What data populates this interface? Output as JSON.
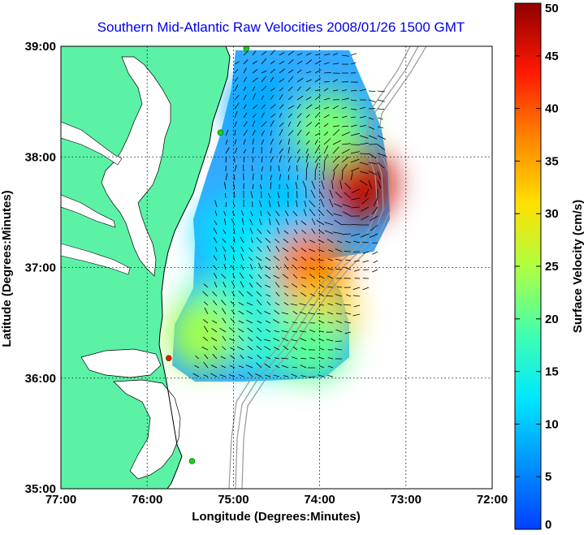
{
  "title": "Southern Mid-Atlantic Raw Velocities 2008/01/26 1500 GMT",
  "title_color": "#0000ee",
  "xlabel": "Longitude (Degrees:Minutes)",
  "ylabel": "Latitude (Degrees:Minutes)",
  "x_ticks": [
    "77:00",
    "76:00",
    "75:00",
    "74:00",
    "73:00",
    "72:00"
  ],
  "y_ticks": [
    "39:00",
    "38:00",
    "37:00",
    "36:00",
    "35:00"
  ],
  "colorbar": {
    "label": "Surface Velocity (cm/s)",
    "ticks": [
      "0",
      "5",
      "10",
      "15",
      "20",
      "25",
      "30",
      "35",
      "40",
      "45",
      "50"
    ],
    "min": 0,
    "max": 50,
    "colormap": "jet"
  },
  "colors": {
    "land": "#5cf2a6",
    "coastline": "#000000",
    "bathymetry": "#999999",
    "gridlines": "#000000",
    "station_green": "#22cc22",
    "station_red": "#ee1111"
  },
  "chart_data": {
    "type": "heatmap",
    "title": "Southern Mid-Atlantic Raw Velocities 2008/01/26 1500 GMT",
    "xlabel": "Longitude (Degrees:Minutes)",
    "ylabel": "Latitude (Degrees:Minutes)",
    "xlim": [
      -77,
      -72
    ],
    "ylim": [
      35,
      39
    ],
    "grid": true,
    "value_range": [
      0,
      50
    ],
    "stations": [
      {
        "lon": -74.85,
        "lat": 38.98,
        "color": "green"
      },
      {
        "lon": -75.15,
        "lat": 38.22,
        "color": "green"
      },
      {
        "lon": -75.75,
        "lat": 36.18,
        "color": "red"
      },
      {
        "lon": -75.48,
        "lat": 35.25,
        "color": "green"
      }
    ],
    "regions": [
      {
        "lon": -74.65,
        "lat": 38.45,
        "speed": 8
      },
      {
        "lon": -74.35,
        "lat": 37.55,
        "speed": 10
      },
      {
        "lon": -75.0,
        "lat": 37.3,
        "speed": 12
      },
      {
        "lon": -74.75,
        "lat": 36.9,
        "speed": 14
      },
      {
        "lon": -75.2,
        "lat": 36.6,
        "speed": 16
      },
      {
        "lon": -74.6,
        "lat": 36.35,
        "speed": 15
      },
      {
        "lon": -73.55,
        "lat": 37.75,
        "speed": 47
      },
      {
        "lon": -73.9,
        "lat": 38.25,
        "speed": 22
      },
      {
        "lon": -74.1,
        "lat": 37.0,
        "speed": 38
      },
      {
        "lon": -74.0,
        "lat": 36.55,
        "speed": 32
      },
      {
        "lon": -75.35,
        "lat": 36.4,
        "speed": 24
      },
      {
        "lon": -74.1,
        "lat": 36.3,
        "speed": 20
      }
    ]
  }
}
